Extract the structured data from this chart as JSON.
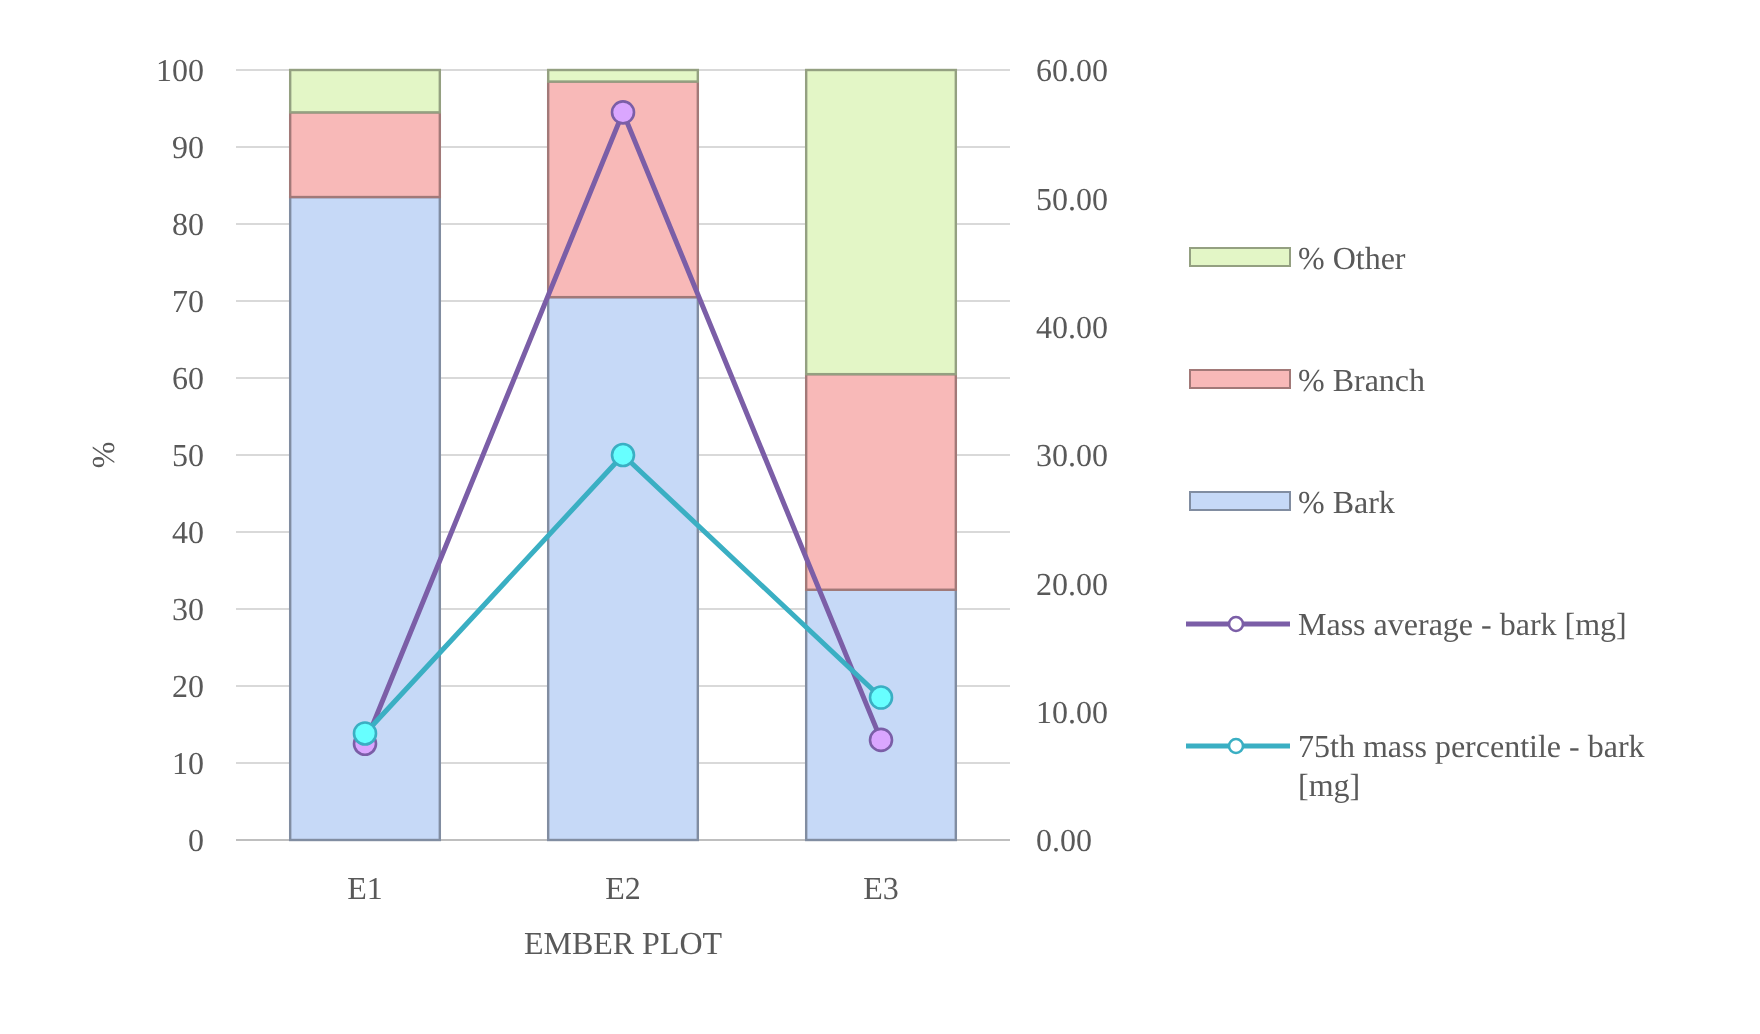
{
  "chart_data": {
    "type": "bar",
    "stacked": true,
    "xlabel": "EMBER PLOT",
    "ylabel": "%",
    "categories": [
      "E1",
      "E2",
      "E3"
    ],
    "series": [
      {
        "name": "% Bark",
        "color": "#c6d9f7",
        "values": [
          83.5,
          70.5,
          32.5
        ]
      },
      {
        "name": "% Branch",
        "color": "#f8b9b8",
        "values": [
          11,
          28,
          28
        ]
      },
      {
        "name": "% Other",
        "color": "#e3f6c6",
        "values": [
          5.5,
          1.5,
          39.5
        ]
      },
      {
        "name": "Mass average - bark [mg]",
        "type": "line",
        "axis": "y2",
        "color": "#7b5ea7",
        "values": [
          7.5,
          56.7,
          7.8
        ]
      },
      {
        "name": "75th mass percentile - bark [mg]",
        "type": "line",
        "axis": "y2",
        "color": "#3aafc3",
        "values": [
          8.3,
          30,
          11.1
        ]
      }
    ],
    "ylim": [
      0,
      100
    ],
    "yticks": [
      0,
      10,
      20,
      30,
      40,
      50,
      60,
      70,
      80,
      90,
      100
    ],
    "y2lim": [
      0,
      60
    ],
    "y2ticks": [
      {
        "value": 0,
        "label": "0.00"
      },
      {
        "value": 10,
        "label": "10.00"
      },
      {
        "value": 20,
        "label": "20.00"
      },
      {
        "value": 30,
        "label": "30.00"
      },
      {
        "value": 40,
        "label": "40.00"
      },
      {
        "value": 50,
        "label": "50.00"
      },
      {
        "value": 60,
        "label": "60.00"
      }
    ],
    "grid": "y",
    "legend": "right",
    "marker": "circle",
    "line_style": "solid"
  }
}
